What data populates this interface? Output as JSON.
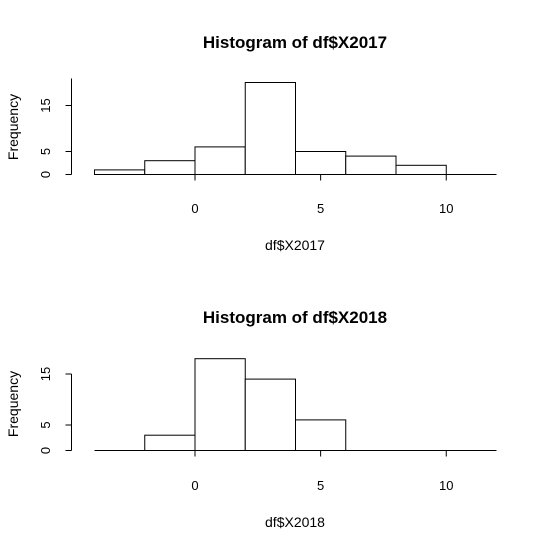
{
  "chart_data": [
    {
      "type": "bar",
      "title": "Histogram of df$X2017",
      "xlabel": "df$X2017",
      "ylabel": "Frequency",
      "xlim": [
        -4,
        12
      ],
      "ylim": [
        0,
        20
      ],
      "xticks": [
        0,
        5,
        10
      ],
      "yticks": [
        0,
        5,
        15
      ],
      "bins": [
        {
          "from": -4,
          "to": -2,
          "count": 1
        },
        {
          "from": -2,
          "to": 0,
          "count": 3
        },
        {
          "from": 0,
          "to": 2,
          "count": 6
        },
        {
          "from": 2,
          "to": 4,
          "count": 20
        },
        {
          "from": 4,
          "to": 6,
          "count": 5
        },
        {
          "from": 6,
          "to": 8,
          "count": 4
        },
        {
          "from": 8,
          "to": 10,
          "count": 2
        }
      ]
    },
    {
      "type": "bar",
      "title": "Histogram of df$X2018",
      "xlabel": "df$X2018",
      "ylabel": "Frequency",
      "xlim": [
        -4,
        12
      ],
      "ylim": [
        0,
        18
      ],
      "xticks": [
        0,
        5,
        10
      ],
      "yticks": [
        0,
        5,
        15
      ],
      "bins": [
        {
          "from": -2,
          "to": 0,
          "count": 3
        },
        {
          "from": 0,
          "to": 2,
          "count": 18
        },
        {
          "from": 2,
          "to": 4,
          "count": 14
        },
        {
          "from": 4,
          "to": 6,
          "count": 6
        }
      ]
    }
  ]
}
